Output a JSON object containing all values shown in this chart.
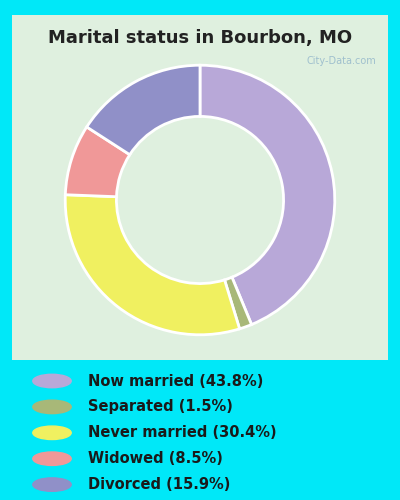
{
  "title": "Marital status in Bourbon, MO",
  "slices": [
    {
      "label": "Now married (43.8%)",
      "value": 43.8,
      "color": "#b8a8d8"
    },
    {
      "label": "Separated (1.5%)",
      "value": 1.5,
      "color": "#a8b878"
    },
    {
      "label": "Never married (30.4%)",
      "value": 30.4,
      "color": "#f0f060"
    },
    {
      "label": "Widowed (8.5%)",
      "value": 8.5,
      "color": "#f09898"
    },
    {
      "label": "Divorced (15.9%)",
      "value": 15.9,
      "color": "#9090c8"
    }
  ],
  "legend_colors": [
    "#b8a8d8",
    "#a8b878",
    "#f0f060",
    "#f09898",
    "#9090c8"
  ],
  "legend_labels": [
    "Now married (43.8%)",
    "Separated (1.5%)",
    "Never married (30.4%)",
    "Widowed (8.5%)",
    "Divorced (15.9%)"
  ],
  "title_fontsize": 13,
  "legend_fontsize": 10.5,
  "bg_cyan": "#00e8f8",
  "bg_chart_color1": "#e8f5e0",
  "bg_chart_color2": "#f0f8f0",
  "watermark": "City-Data.com",
  "chart_bg": "#ddeedd"
}
